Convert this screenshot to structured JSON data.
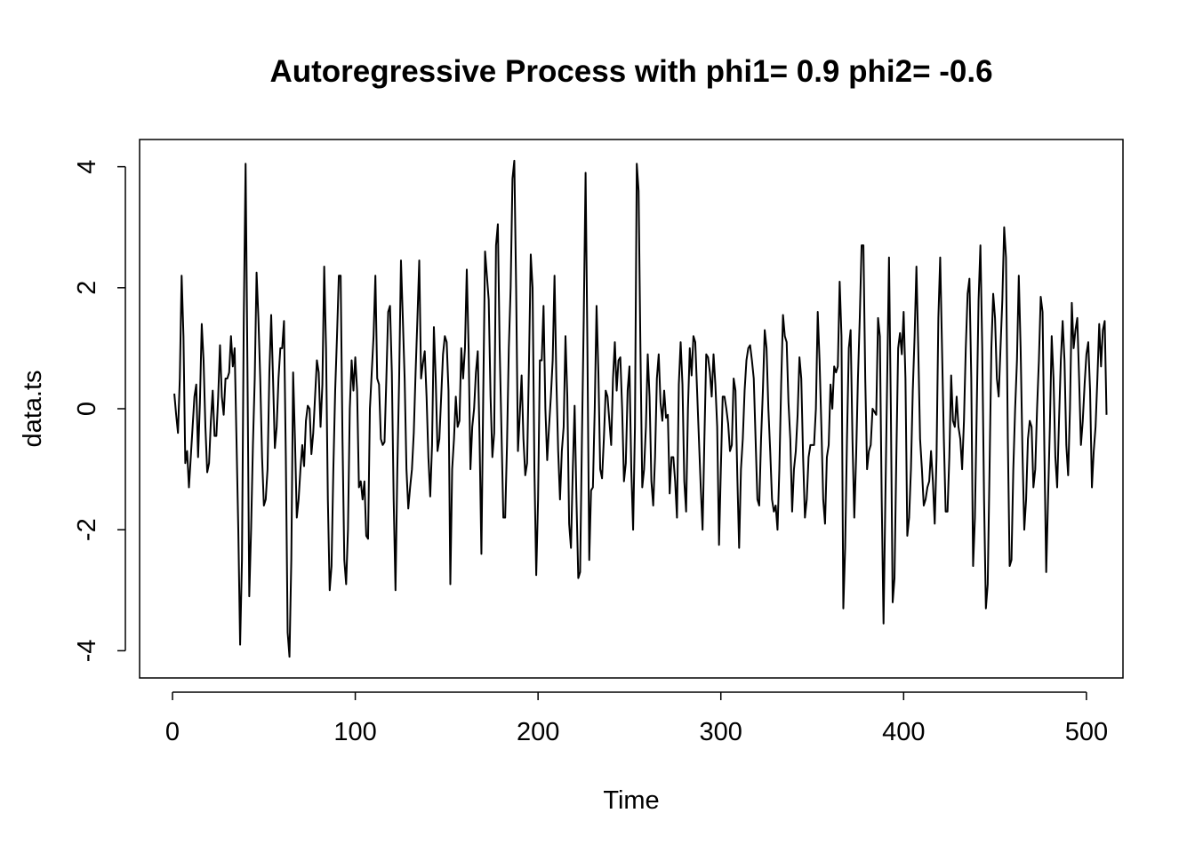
{
  "chart_data": {
    "type": "line",
    "title": "Autoregressive Process with phi1= 0.9  phi2= -0.6",
    "xlabel": "Time",
    "ylabel": "data.ts",
    "xlim": [
      -18,
      520
    ],
    "ylim": [
      -4.45,
      4.45
    ],
    "x_ticks": [
      0,
      100,
      200,
      300,
      400,
      500
    ],
    "y_ticks": [
      -4,
      -2,
      0,
      2,
      4
    ],
    "x_tick_labels": [
      "0",
      "100",
      "200",
      "300",
      "400",
      "500"
    ],
    "y_tick_labels": [
      "-4",
      "-2",
      "0",
      "2",
      "4"
    ],
    "grid": false,
    "legend": "none",
    "line_color": "#000000",
    "series": [
      {
        "x_start": 1,
        "x_step": 1,
        "values": [
          0.25,
          -0.1,
          -0.4,
          0.5,
          2.2,
          1.2,
          -0.9,
          -0.7,
          -1.3,
          -0.8,
          -0.3,
          0.2,
          0.4,
          -0.8,
          0.1,
          1.4,
          0.8,
          -0.3,
          -1.05,
          -0.9,
          -0.2,
          0.3,
          -0.45,
          -0.45,
          0.2,
          1.05,
          0.2,
          -0.1,
          0.5,
          0.5,
          0.6,
          1.2,
          0.7,
          1.0,
          -0.5,
          -2.0,
          -3.9,
          -2.5,
          1.5,
          4.05,
          0.7,
          -3.1,
          -2.0,
          -0.6,
          0.5,
          2.25,
          1.5,
          0.5,
          -0.8,
          -1.6,
          -1.5,
          -1.0,
          0.6,
          1.55,
          0.5,
          -0.65,
          -0.3,
          0.5,
          1.0,
          1.0,
          1.45,
          -0.8,
          -3.7,
          -4.1,
          -2.5,
          0.6,
          -0.5,
          -1.8,
          -1.5,
          -1.0,
          -0.6,
          -0.95,
          -0.2,
          0.05,
          0.0,
          -0.75,
          -0.4,
          0.2,
          0.8,
          0.6,
          -0.3,
          0.4,
          2.35,
          1.0,
          -1.5,
          -3.0,
          -2.6,
          -1.0,
          0.3,
          1.2,
          2.2,
          2.2,
          -0.5,
          -2.5,
          -2.9,
          -2.0,
          0.0,
          0.8,
          0.3,
          0.85,
          0.3,
          -1.3,
          -1.2,
          -1.5,
          -1.2,
          -2.1,
          -2.15,
          0.0,
          0.6,
          1.2,
          2.2,
          0.5,
          0.4,
          -0.5,
          -0.6,
          -0.55,
          0.5,
          1.6,
          1.7,
          0.6,
          -1.5,
          -3.0,
          -1.0,
          0.5,
          2.45,
          1.5,
          0.5,
          -1.0,
          -1.65,
          -1.3,
          -1.0,
          -0.4,
          0.6,
          1.5,
          2.45,
          0.5,
          0.75,
          0.95,
          0.2,
          -0.8,
          -1.45,
          -0.6,
          1.35,
          0.5,
          -0.7,
          -0.5,
          0.2,
          0.9,
          1.2,
          1.1,
          0.3,
          -2.9,
          -1.0,
          -0.5,
          0.2,
          -0.3,
          -0.2,
          1.0,
          0.5,
          1.0,
          2.3,
          1.0,
          -1.0,
          -0.3,
          0.0,
          0.6,
          0.95,
          -0.5,
          -2.4,
          0.2,
          2.6,
          2.2,
          1.8,
          0.2,
          -0.8,
          -0.4,
          2.7,
          3.05,
          1.0,
          -0.4,
          -1.8,
          -1.8,
          -0.6,
          1.0,
          2.0,
          3.8,
          4.1,
          2.0,
          -0.7,
          -0.1,
          0.55,
          -0.5,
          -1.1,
          -0.9,
          0.7,
          2.55,
          2.0,
          -1.0,
          -2.75,
          -1.5,
          0.8,
          0.8,
          1.7,
          0.0,
          -0.85,
          -0.3,
          0.2,
          0.8,
          2.2,
          0.5,
          -0.7,
          -1.5,
          -0.7,
          -0.3,
          1.2,
          0.2,
          -1.9,
          -2.3,
          -1.0,
          0.05,
          -1.5,
          -2.8,
          -2.7,
          -0.5,
          1.5,
          3.9,
          1.0,
          -2.5,
          -1.35,
          -1.3,
          0.0,
          1.7,
          0.6,
          -1.0,
          -1.15,
          -0.5,
          0.3,
          0.2,
          -0.2,
          -0.6,
          0.5,
          1.1,
          0.3,
          0.8,
          0.85,
          0.0,
          -1.2,
          -0.9,
          0.3,
          0.7,
          -1.0,
          -2.0,
          -0.3,
          4.05,
          3.6,
          1.0,
          -1.3,
          -1.0,
          -0.3,
          0.9,
          0.2,
          -1.2,
          -1.6,
          -0.8,
          0.5,
          0.9,
          0.1,
          -0.2,
          0.3,
          -0.15,
          -0.1,
          -1.4,
          -0.8,
          -0.8,
          -1.2,
          -1.8,
          0.4,
          1.1,
          0.4,
          -1.2,
          -1.7,
          0.0,
          1.0,
          0.55,
          1.2,
          1.1,
          0.3,
          -0.5,
          -1.3,
          -2.0,
          -0.5,
          0.9,
          0.85,
          0.6,
          0.2,
          0.9,
          0.4,
          -0.3,
          -2.25,
          -1.0,
          0.2,
          0.2,
          0.0,
          -0.25,
          -0.7,
          -0.6,
          0.5,
          0.3,
          -1.1,
          -2.3,
          -1.0,
          -0.5,
          0.3,
          0.8,
          1.0,
          1.05,
          0.8,
          0.5,
          -0.5,
          -1.5,
          -1.6,
          -0.5,
          0.3,
          1.3,
          1.0,
          0.0,
          -0.7,
          -1.5,
          -1.7,
          -1.6,
          -2.0,
          -1.0,
          0.4,
          1.55,
          1.2,
          1.1,
          0.1,
          -0.5,
          -1.7,
          -1.0,
          -0.7,
          -0.1,
          0.85,
          0.5,
          -0.8,
          -1.8,
          -1.5,
          -0.8,
          -0.6,
          -0.6,
          -0.6,
          0.0,
          1.6,
          0.8,
          -0.3,
          -1.5,
          -1.9,
          -0.8,
          -0.6,
          0.4,
          0.0,
          0.7,
          0.6,
          0.7,
          2.1,
          1.2,
          -3.3,
          -2.3,
          -0.5,
          1.0,
          1.3,
          -0.5,
          -1.8,
          -0.8,
          0.5,
          1.5,
          2.7,
          2.7,
          0.5,
          -1.0,
          -0.7,
          -0.6,
          0.0,
          -0.05,
          -0.1,
          1.5,
          1.2,
          -1.5,
          -3.55,
          -1.5,
          0.5,
          2.5,
          0.0,
          -3.2,
          -2.8,
          -0.8,
          1.0,
          1.25,
          0.9,
          1.6,
          0.5,
          -2.1,
          -1.8,
          -1.0,
          0.3,
          1.2,
          2.35,
          1.0,
          -0.5,
          -1.0,
          -1.6,
          -1.5,
          -1.3,
          -1.2,
          -0.7,
          -1.2,
          -1.9,
          -0.8,
          1.5,
          2.5,
          1.0,
          -0.5,
          -1.7,
          -1.7,
          -0.8,
          0.55,
          -0.2,
          -0.3,
          0.2,
          -0.3,
          -0.5,
          -1.0,
          -0.2,
          1.0,
          1.9,
          2.15,
          0.5,
          -2.6,
          -1.8,
          0.0,
          1.8,
          2.7,
          1.0,
          -1.5,
          -3.3,
          -2.9,
          -1.0,
          1.0,
          1.9,
          1.5,
          0.5,
          0.2,
          1.0,
          1.8,
          3.0,
          2.5,
          -0.5,
          -2.6,
          -2.5,
          -1.0,
          0.0,
          0.8,
          2.2,
          1.0,
          -0.7,
          -2.0,
          -1.5,
          -0.5,
          -0.2,
          -0.3,
          -1.3,
          -1.0,
          0.0,
          0.8,
          1.85,
          1.6,
          -0.7,
          -2.7,
          -1.5,
          -0.3,
          1.2,
          0.5,
          -0.8,
          -1.3,
          -0.2,
          0.8,
          1.45,
          0.8,
          -0.6,
          -1.1,
          0.0,
          1.75,
          1.0,
          1.3,
          1.5,
          0.5,
          -0.6,
          -0.2,
          0.4,
          0.9,
          1.1,
          0.3,
          -1.3,
          -0.7,
          -0.3,
          0.5,
          1.4,
          0.7,
          1.3,
          1.45,
          -0.1
        ]
      }
    ]
  }
}
